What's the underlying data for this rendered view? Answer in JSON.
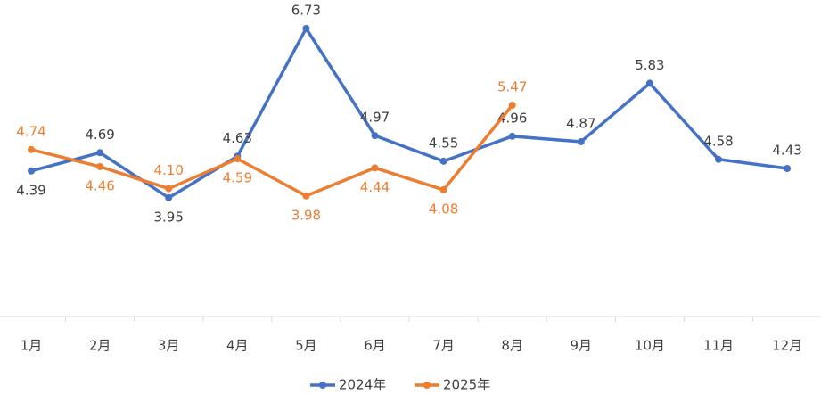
{
  "chart_data": {
    "type": "line",
    "categories": [
      "1月",
      "2月",
      "3月",
      "4月",
      "5月",
      "6月",
      "7月",
      "8月",
      "9月",
      "10月",
      "11月",
      "12月"
    ],
    "series": [
      {
        "name": "2024年",
        "color": "#4472c4",
        "values": [
          4.39,
          4.69,
          3.95,
          4.63,
          6.73,
          4.97,
          4.55,
          4.96,
          4.87,
          5.83,
          4.58,
          4.43
        ]
      },
      {
        "name": "2025年",
        "color": "#ed7d31",
        "values": [
          4.74,
          4.46,
          4.1,
          4.59,
          3.98,
          4.44,
          4.08,
          5.47,
          null,
          null,
          null,
          null
        ],
        "value_labels": [
          "4.74",
          "4.46",
          "4.10",
          "4.59",
          "3.98",
          "4.44",
          "4.08",
          "5.47",
          null,
          null,
          null,
          null
        ]
      }
    ],
    "ylim": [
      2,
      7
    ],
    "legend": "bottom"
  }
}
